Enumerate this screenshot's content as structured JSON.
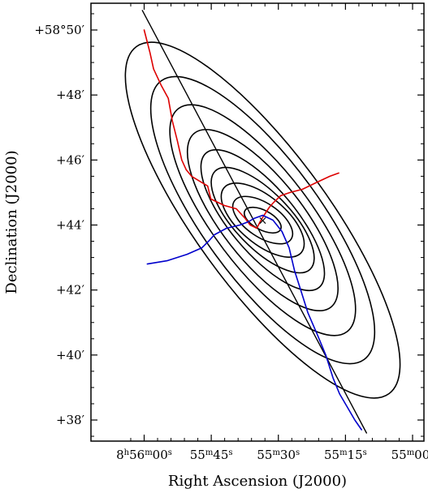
{
  "chart_data": {
    "type": "sky-map",
    "xlabel": "Right Ascension (J2000)",
    "ylabel": "Declination (J2000)",
    "x_tick_labels": [
      {
        "h": "8",
        "m": "56",
        "s": "00",
        "prefix_h": true
      },
      {
        "m": "55",
        "s": "45"
      },
      {
        "m": "55",
        "s": "30"
      },
      {
        "m": "55",
        "s": "15"
      },
      {
        "m": "55",
        "s": "00"
      }
    ],
    "y_tick_labels": [
      "+58°50′",
      "+48′",
      "+46′",
      "+44′",
      "+42′",
      "+40′",
      "+38′"
    ],
    "y_tick_values_arcmin": [
      50,
      48,
      46,
      44,
      42,
      40,
      38
    ],
    "x_tick_values_sec": [
      60,
      45,
      30,
      15,
      0
    ],
    "center": {
      "ra_sec": 33.5,
      "dec_arcmin": 44.15
    },
    "ellipses": [
      {
        "semi_major_arcmin": 0.62,
        "semi_minor_arcmin": 0.3,
        "pa_deg": 62
      },
      {
        "semi_major_arcmin": 1.05,
        "semi_minor_arcmin": 0.52,
        "pa_deg": 56
      },
      {
        "semi_major_arcmin": 1.55,
        "semi_minor_arcmin": 0.72,
        "pa_deg": 50
      },
      {
        "semi_major_arcmin": 2.1,
        "semi_minor_arcmin": 0.85,
        "pa_deg": 44
      },
      {
        "semi_major_arcmin": 2.7,
        "semi_minor_arcmin": 1.0,
        "pa_deg": 40
      },
      {
        "semi_major_arcmin": 3.4,
        "semi_minor_arcmin": 1.25,
        "pa_deg": 38
      },
      {
        "semi_major_arcmin": 4.3,
        "semi_minor_arcmin": 1.5,
        "pa_deg": 37
      },
      {
        "semi_major_arcmin": 5.3,
        "semi_minor_arcmin": 1.8,
        "pa_deg": 36
      },
      {
        "semi_major_arcmin": 6.6,
        "semi_minor_arcmin": 2.05,
        "pa_deg": 36
      }
    ],
    "major_axis_line": {
      "color": "#000000",
      "points": [
        [
          60.4,
          50.6
        ],
        [
          10.3,
          37.6
        ]
      ]
    },
    "red_path": {
      "color": "#dd0000",
      "points": [
        [
          60.0,
          50.0
        ],
        [
          58.7,
          49.3
        ],
        [
          57.9,
          48.8
        ],
        [
          56.2,
          48.3
        ],
        [
          54.6,
          47.9
        ],
        [
          53.7,
          47.2
        ],
        [
          52.6,
          46.6
        ],
        [
          51.6,
          46.0
        ],
        [
          50.6,
          45.7
        ],
        [
          49.4,
          45.5
        ],
        [
          47.0,
          45.3
        ],
        [
          45.8,
          45.2
        ],
        [
          45.1,
          44.8
        ],
        [
          43.6,
          44.7
        ],
        [
          42.1,
          44.6
        ],
        [
          39.4,
          44.5
        ],
        [
          37.4,
          44.2
        ],
        [
          36.3,
          44.0
        ],
        [
          34.8,
          43.9
        ],
        [
          34.1,
          44.1
        ],
        [
          33.2,
          44.3
        ],
        [
          32.0,
          44.55
        ],
        [
          31.0,
          44.7
        ],
        [
          29.5,
          44.9
        ],
        [
          27.4,
          45.0
        ],
        [
          24.6,
          45.1
        ],
        [
          21.6,
          45.3
        ],
        [
          18.5,
          45.5
        ],
        [
          16.5,
          45.6
        ]
      ]
    },
    "blue_path": {
      "color": "#0000cc",
      "points": [
        [
          59.3,
          42.8
        ],
        [
          54.9,
          42.9
        ],
        [
          50.4,
          43.1
        ],
        [
          47.1,
          43.3
        ],
        [
          45.6,
          43.5
        ],
        [
          44.3,
          43.7
        ],
        [
          41.6,
          43.9
        ],
        [
          38.6,
          44.0
        ],
        [
          36.7,
          44.1
        ],
        [
          35.5,
          44.2
        ],
        [
          33.5,
          44.3
        ],
        [
          31.2,
          44.15
        ],
        [
          29.2,
          43.8
        ],
        [
          27.6,
          43.3
        ],
        [
          26.4,
          42.6
        ],
        [
          25.0,
          42.0
        ],
        [
          23.4,
          41.3
        ],
        [
          21.2,
          40.6
        ],
        [
          19.4,
          40.0
        ],
        [
          17.8,
          39.3
        ],
        [
          16.3,
          38.8
        ],
        [
          14.6,
          38.4
        ],
        [
          12.9,
          38.0
        ],
        [
          11.4,
          37.7
        ]
      ]
    },
    "center_marker": {
      "label": "×"
    }
  }
}
